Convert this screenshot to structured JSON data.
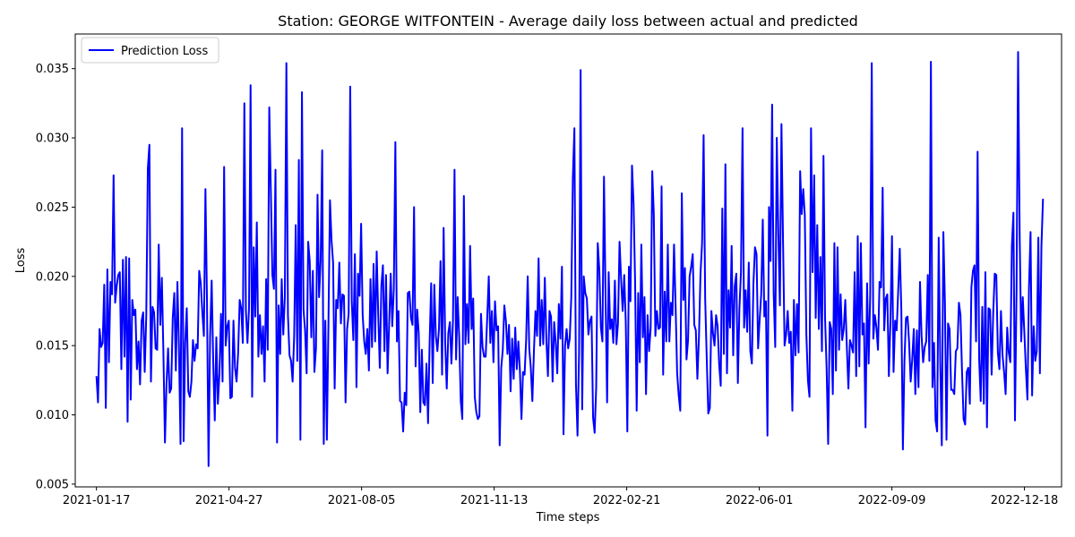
{
  "chart_data": {
    "type": "line",
    "title": "Station: GEORGE WITFONTEIN - Average daily loss between actual and predicted",
    "xlabel": "Time steps",
    "ylabel": "Loss",
    "x_start": "2021-01-17",
    "x_end": "2023-01-01",
    "xlim": [
      "2021-01-01",
      "2023-01-15"
    ],
    "ylim": [
      0.0048,
      0.0375
    ],
    "x_ticks": [
      "2021-01-17",
      "2021-04-27",
      "2021-08-05",
      "2021-11-13",
      "2022-02-21",
      "2022-06-01",
      "2022-09-09",
      "2022-12-18"
    ],
    "y_ticks": [
      0.005,
      0.01,
      0.015,
      0.02,
      0.025,
      0.03,
      0.035
    ],
    "y_tick_labels": [
      "0.005",
      "0.010",
      "0.015",
      "0.020",
      "0.025",
      "0.030",
      "0.035"
    ],
    "legend": {
      "position": "upper-left",
      "entries": [
        "Prediction Loss"
      ]
    },
    "grid": false,
    "color": "#0000ff",
    "series": [
      {
        "name": "Prediction Loss",
        "values": [
          0.0128,
          0.0109,
          0.0162,
          0.0149,
          0.0152,
          0.0194,
          0.0105,
          0.0205,
          0.0138,
          0.0196,
          0.0187,
          0.0273,
          0.0181,
          0.0193,
          0.0201,
          0.0203,
          0.0133,
          0.0212,
          0.0142,
          0.0214,
          0.0095,
          0.0213,
          0.0111,
          0.0183,
          0.0172,
          0.0176,
          0.0133,
          0.0153,
          0.0122,
          0.0168,
          0.0174,
          0.0131,
          0.0172,
          0.0278,
          0.0295,
          0.0124,
          0.0178,
          0.0174,
          0.0148,
          0.0147,
          0.0223,
          0.0165,
          0.0199,
          0.0145,
          0.008,
          0.0123,
          0.0148,
          0.0116,
          0.0119,
          0.017,
          0.0188,
          0.0132,
          0.0196,
          0.0148,
          0.0079,
          0.0307,
          0.0081,
          0.0152,
          0.0177,
          0.0117,
          0.0113,
          0.0124,
          0.0154,
          0.0139,
          0.0151,
          0.0148,
          0.0204,
          0.0195,
          0.0174,
          0.0157,
          0.0263,
          0.0182,
          0.0063,
          0.0157,
          0.0197,
          0.0138,
          0.0096,
          0.0156,
          0.0108,
          0.013,
          0.0173,
          0.0124,
          0.0279,
          0.015,
          0.0164,
          0.0168,
          0.0112,
          0.0113,
          0.0168,
          0.0134,
          0.0124,
          0.0145,
          0.0183,
          0.0177,
          0.0152,
          0.0325,
          0.0175,
          0.0152,
          0.0177,
          0.0338,
          0.0113,
          0.0221,
          0.0171,
          0.0239,
          0.0142,
          0.0172,
          0.0144,
          0.0164,
          0.0124,
          0.0198,
          0.0147,
          0.0322,
          0.0262,
          0.0201,
          0.0191,
          0.0277,
          0.008,
          0.0179,
          0.0144,
          0.0198,
          0.0158,
          0.0185,
          0.0354,
          0.0172,
          0.0143,
          0.0139,
          0.0124,
          0.0157,
          0.0237,
          0.0139,
          0.0284,
          0.0082,
          0.0333,
          0.0176,
          0.0161,
          0.013,
          0.0225,
          0.0211,
          0.0156,
          0.0204,
          0.0131,
          0.0148,
          0.0259,
          0.0185,
          0.0211,
          0.0291,
          0.0079,
          0.0168,
          0.0082,
          0.0165,
          0.0255,
          0.0226,
          0.021,
          0.0119,
          0.0183,
          0.0177,
          0.021,
          0.0166,
          0.0187,
          0.0186,
          0.0109,
          0.0162,
          0.0173,
          0.0337,
          0.0182,
          0.0154,
          0.0216,
          0.012,
          0.0202,
          0.0186,
          0.0238,
          0.0172,
          0.0153,
          0.0144,
          0.0162,
          0.0132,
          0.0198,
          0.0149,
          0.0209,
          0.0153,
          0.0218,
          0.0172,
          0.0134,
          0.0193,
          0.0208,
          0.0146,
          0.0201,
          0.013,
          0.0165,
          0.0202,
          0.0164,
          0.0191,
          0.0297,
          0.0153,
          0.0175,
          0.011,
          0.0109,
          0.0088,
          0.0116,
          0.0107,
          0.0188,
          0.0189,
          0.017,
          0.0165,
          0.025,
          0.0135,
          0.0176,
          0.0159,
          0.0102,
          0.0147,
          0.0109,
          0.0107,
          0.0137,
          0.0094,
          0.0152,
          0.0195,
          0.0123,
          0.0194,
          0.0157,
          0.0146,
          0.0162,
          0.0211,
          0.0129,
          0.0235,
          0.0152,
          0.0119,
          0.0159,
          0.0167,
          0.0137,
          0.0168,
          0.0277,
          0.014,
          0.0185,
          0.0156,
          0.011,
          0.0097,
          0.0258,
          0.0151,
          0.018,
          0.0152,
          0.0222,
          0.0162,
          0.0184,
          0.0113,
          0.0102,
          0.0097,
          0.0099,
          0.0173,
          0.0149,
          0.0142,
          0.0142,
          0.017,
          0.02,
          0.0152,
          0.0175,
          0.0138,
          0.0182,
          0.0161,
          0.0164,
          0.0078,
          0.0134,
          0.0147,
          0.0179,
          0.0168,
          0.0144,
          0.0165,
          0.0117,
          0.0155,
          0.0126,
          0.0163,
          0.0133,
          0.0153,
          0.0132,
          0.0097,
          0.0131,
          0.0129,
          0.0154,
          0.02,
          0.0148,
          0.0134,
          0.011,
          0.0146,
          0.0175,
          0.0157,
          0.0213,
          0.015,
          0.0183,
          0.0151,
          0.0199,
          0.0154,
          0.0128,
          0.0175,
          0.0171,
          0.0124,
          0.0167,
          0.0152,
          0.013,
          0.018,
          0.0155,
          0.0207,
          0.0086,
          0.015,
          0.0162,
          0.0148,
          0.0155,
          0.0185,
          0.0271,
          0.0307,
          0.0122,
          0.0085,
          0.0145,
          0.0349,
          0.0104,
          0.02,
          0.0188,
          0.0184,
          0.0158,
          0.0168,
          0.0171,
          0.0098,
          0.0087,
          0.012,
          0.0224,
          0.0205,
          0.0163,
          0.0153,
          0.0272,
          0.0187,
          0.0109,
          0.0203,
          0.0162,
          0.0169,
          0.0152,
          0.0197,
          0.0151,
          0.0166,
          0.0225,
          0.0198,
          0.0175,
          0.0201,
          0.0167,
          0.0088,
          0.0207,
          0.0182,
          0.028,
          0.0253,
          0.0195,
          0.0103,
          0.0188,
          0.0138,
          0.0223,
          0.0156,
          0.0185,
          0.0115,
          0.0172,
          0.0146,
          0.0163,
          0.0276,
          0.0245,
          0.0157,
          0.0175,
          0.0162,
          0.0163,
          0.0265,
          0.0129,
          0.0189,
          0.0153,
          0.0223,
          0.0153,
          0.0181,
          0.0172,
          0.0223,
          0.0179,
          0.013,
          0.0114,
          0.0103,
          0.026,
          0.0183,
          0.0206,
          0.014,
          0.0154,
          0.02,
          0.0207,
          0.0216,
          0.0165,
          0.0161,
          0.0126,
          0.0156,
          0.0202,
          0.0224,
          0.0302,
          0.0184,
          0.0141,
          0.0101,
          0.0105,
          0.0175,
          0.0159,
          0.015,
          0.0172,
          0.0164,
          0.0136,
          0.0121,
          0.0249,
          0.0144,
          0.0281,
          0.013,
          0.019,
          0.0163,
          0.0222,
          0.0143,
          0.0193,
          0.0202,
          0.0123,
          0.0177,
          0.0203,
          0.0307,
          0.0163,
          0.019,
          0.016,
          0.021,
          0.0146,
          0.0137,
          0.0195,
          0.0221,
          0.0216,
          0.0148,
          0.0169,
          0.0187,
          0.0241,
          0.0171,
          0.0182,
          0.0085,
          0.025,
          0.0211,
          0.0324,
          0.0188,
          0.0149,
          0.03,
          0.0231,
          0.0179,
          0.031,
          0.0227,
          0.015,
          0.0158,
          0.0175,
          0.0152,
          0.016,
          0.0103,
          0.0183,
          0.0143,
          0.018,
          0.0145,
          0.0276,
          0.0245,
          0.0263,
          0.0244,
          0.0158,
          0.0125,
          0.0113,
          0.0307,
          0.0203,
          0.0273,
          0.017,
          0.0237,
          0.0162,
          0.0214,
          0.0146,
          0.0287,
          0.017,
          0.0134,
          0.0079,
          0.0167,
          0.0162,
          0.0115,
          0.0224,
          0.0132,
          0.0221,
          0.0147,
          0.0187,
          0.0154,
          0.0162,
          0.0183,
          0.0149,
          0.0119,
          0.0154,
          0.015,
          0.0145,
          0.0203,
          0.0128,
          0.0229,
          0.0135,
          0.0224,
          0.0158,
          0.0166,
          0.0091,
          0.0195,
          0.0137,
          0.0186,
          0.0354,
          0.0155,
          0.0172,
          0.0163,
          0.0147,
          0.0196,
          0.0192,
          0.0264,
          0.0161,
          0.0184,
          0.0187,
          0.0128,
          0.0167,
          0.0229,
          0.0131,
          0.0168,
          0.0161,
          0.019,
          0.022,
          0.0176,
          0.0075,
          0.0139,
          0.017,
          0.0171,
          0.0152,
          0.0124,
          0.014,
          0.0162,
          0.0115,
          0.0161,
          0.012,
          0.0196,
          0.0157,
          0.0138,
          0.0149,
          0.0153,
          0.0201,
          0.0139,
          0.0355,
          0.012,
          0.0152,
          0.0096,
          0.0088,
          0.0228,
          0.0137,
          0.0078,
          0.0232,
          0.0181,
          0.0082,
          0.0166,
          0.0162,
          0.0118,
          0.0118,
          0.0115,
          0.0146,
          0.0148,
          0.0181,
          0.0172,
          0.0131,
          0.0097,
          0.0093,
          0.0131,
          0.0134,
          0.0108,
          0.0192,
          0.0204,
          0.0208,
          0.0153,
          0.029,
          0.014,
          0.011,
          0.0178,
          0.0108,
          0.0203,
          0.0091,
          0.0177,
          0.0176,
          0.0129,
          0.0173,
          0.0202,
          0.0201,
          0.0145,
          0.0133,
          0.0175,
          0.0143,
          0.0131,
          0.0115,
          0.0163,
          0.0145,
          0.0138,
          0.0222,
          0.0246,
          0.0096,
          0.019,
          0.0362,
          0.0231,
          0.0153,
          0.0185,
          0.016,
          0.0133,
          0.0111,
          0.0192,
          0.0232,
          0.0114,
          0.0164,
          0.0139,
          0.0146,
          0.0228,
          0.013,
          0.0222,
          0.0256
        ]
      }
    ]
  }
}
